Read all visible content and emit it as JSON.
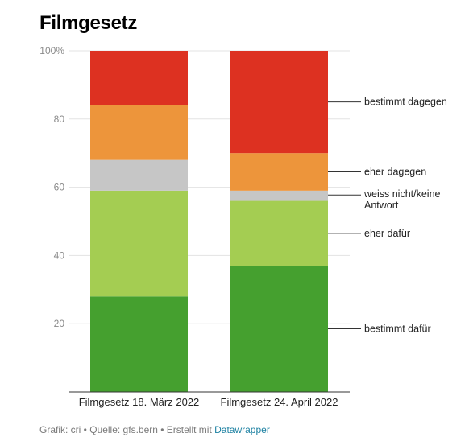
{
  "chart_data": {
    "type": "bar",
    "stacked": true,
    "title": "Filmgesetz",
    "categories": [
      "Filmgesetz 18. März 2022",
      "Filmgesetz 24. April 2022"
    ],
    "series": [
      {
        "name": "bestimmt dafür",
        "color": "#45a02f",
        "values": [
          28,
          37
        ]
      },
      {
        "name": "eher dafür",
        "color": "#a4cd52",
        "values": [
          31,
          19
        ]
      },
      {
        "name": "weiss nicht/keine Antwort",
        "color": "#c6c6c6",
        "values": [
          9,
          3
        ]
      },
      {
        "name": "eher dagegen",
        "color": "#ed953b",
        "values": [
          16,
          11
        ]
      },
      {
        "name": "bestimmt dagegen",
        "color": "#dd3121",
        "values": [
          16,
          30
        ]
      }
    ],
    "ylim": [
      0,
      100
    ],
    "yticks": [
      {
        "value": 20,
        "label": "20"
      },
      {
        "value": 40,
        "label": "40"
      },
      {
        "value": 60,
        "label": "60"
      },
      {
        "value": 80,
        "label": "80"
      },
      {
        "value": 100,
        "label": "100%"
      }
    ],
    "grid": true,
    "legend": "right, inline labels for last bar"
  },
  "footer": {
    "prefix": "Grafik: cri • Quelle: gfs.bern • Erstellt mit ",
    "link": "Datawrapper"
  }
}
